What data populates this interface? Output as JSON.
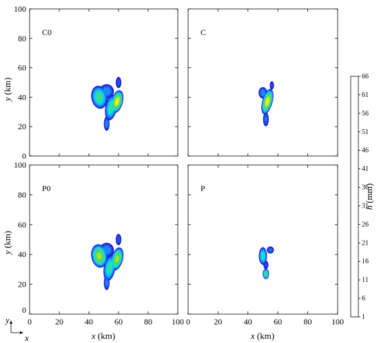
{
  "chart_data": {
    "type": "heatmap",
    "panels": [
      {
        "label": "C0",
        "blobs": [
          {
            "cx": 47,
            "cy": 40,
            "rx": 5.5,
            "ry": 8,
            "rot": -10,
            "peak": 30
          },
          {
            "cx": 55,
            "cy": 33,
            "rx": 4,
            "ry": 9,
            "rot": 10,
            "peak": 28
          },
          {
            "cx": 59,
            "cy": 37,
            "rx": 4,
            "ry": 8,
            "rot": 15,
            "peak": 45
          },
          {
            "cx": 60,
            "cy": 50,
            "rx": 2,
            "ry": 4,
            "rot": 0,
            "peak": 10
          },
          {
            "cx": 52,
            "cy": 22,
            "rx": 2,
            "ry": 5,
            "rot": 0,
            "peak": 14
          },
          {
            "cx": 52,
            "cy": 44,
            "rx": 5,
            "ry": 5,
            "rot": 0,
            "peak": 16
          }
        ]
      },
      {
        "label": "C",
        "blobs": [
          {
            "cx": 53,
            "cy": 37,
            "rx": 3.5,
            "ry": 9,
            "rot": 15,
            "peak": 45
          },
          {
            "cx": 50,
            "cy": 43,
            "rx": 3,
            "ry": 4,
            "rot": 0,
            "peak": 16
          },
          {
            "cx": 56,
            "cy": 48,
            "rx": 1.5,
            "ry": 3,
            "rot": 0,
            "peak": 8
          },
          {
            "cx": 52,
            "cy": 25,
            "rx": 2,
            "ry": 5,
            "rot": 0,
            "peak": 12
          }
        ]
      },
      {
        "label": "P0",
        "blobs": [
          {
            "cx": 47,
            "cy": 39,
            "rx": 5.5,
            "ry": 8,
            "rot": -10,
            "peak": 40
          },
          {
            "cx": 54,
            "cy": 31,
            "rx": 4,
            "ry": 9,
            "rot": 10,
            "peak": 28
          },
          {
            "cx": 59,
            "cy": 37,
            "rx": 4,
            "ry": 8,
            "rot": 15,
            "peak": 40
          },
          {
            "cx": 60,
            "cy": 50,
            "rx": 2,
            "ry": 4,
            "rot": 0,
            "peak": 10
          },
          {
            "cx": 52,
            "cy": 21,
            "rx": 2,
            "ry": 5,
            "rot": 0,
            "peak": 14
          },
          {
            "cx": 52,
            "cy": 43,
            "rx": 5,
            "ry": 5,
            "rot": 0,
            "peak": 16
          }
        ]
      },
      {
        "label": "P",
        "blobs": [
          {
            "cx": 50,
            "cy": 39,
            "rx": 2.8,
            "ry": 6,
            "rot": 0,
            "peak": 26
          },
          {
            "cx": 52,
            "cy": 27,
            "rx": 2.2,
            "ry": 3.5,
            "rot": 0,
            "peak": 32
          },
          {
            "cx": 55,
            "cy": 43,
            "rx": 2.5,
            "ry": 2.5,
            "rot": 0,
            "peak": 12
          },
          {
            "cx": 52,
            "cy": 33,
            "rx": 1.8,
            "ry": 3,
            "rot": 0,
            "peak": 9
          }
        ]
      }
    ],
    "x_ticks": [
      "0",
      "20",
      "40",
      "60",
      "80",
      "100"
    ],
    "y_ticks": [
      "0",
      "20",
      "40",
      "60",
      "80",
      "100"
    ],
    "xlim": [
      0,
      100
    ],
    "ylim": [
      0,
      100
    ],
    "xlabel_var": "x",
    "xlabel_unit": " (km)",
    "ylabel_var": "y",
    "ylabel_top_unit": " (km)",
    "ylabel_bottom_unit": " (km)",
    "colorbar": {
      "label_var": "h",
      "label_unit": " (mm)",
      "levels": [
        1,
        6,
        11,
        16,
        21,
        26,
        31,
        36,
        41,
        46,
        51,
        56,
        61,
        66
      ],
      "tick_labels": [
        "1",
        "6",
        "11",
        "16",
        "21",
        "26",
        "31",
        "36",
        "41",
        "46",
        "51",
        "56",
        "61",
        "66"
      ],
      "colors": [
        "#1a1ad0",
        "#1f4ff5",
        "#1e88ff",
        "#00c4ff",
        "#19e0c8",
        "#3ddb8a",
        "#55d455",
        "#9be53a",
        "#e8f21e",
        "#ffd21e",
        "#ffa512",
        "#ff7010",
        "#f0300c"
      ]
    },
    "corner_axes": {
      "x": "x",
      "y": "y"
    }
  }
}
